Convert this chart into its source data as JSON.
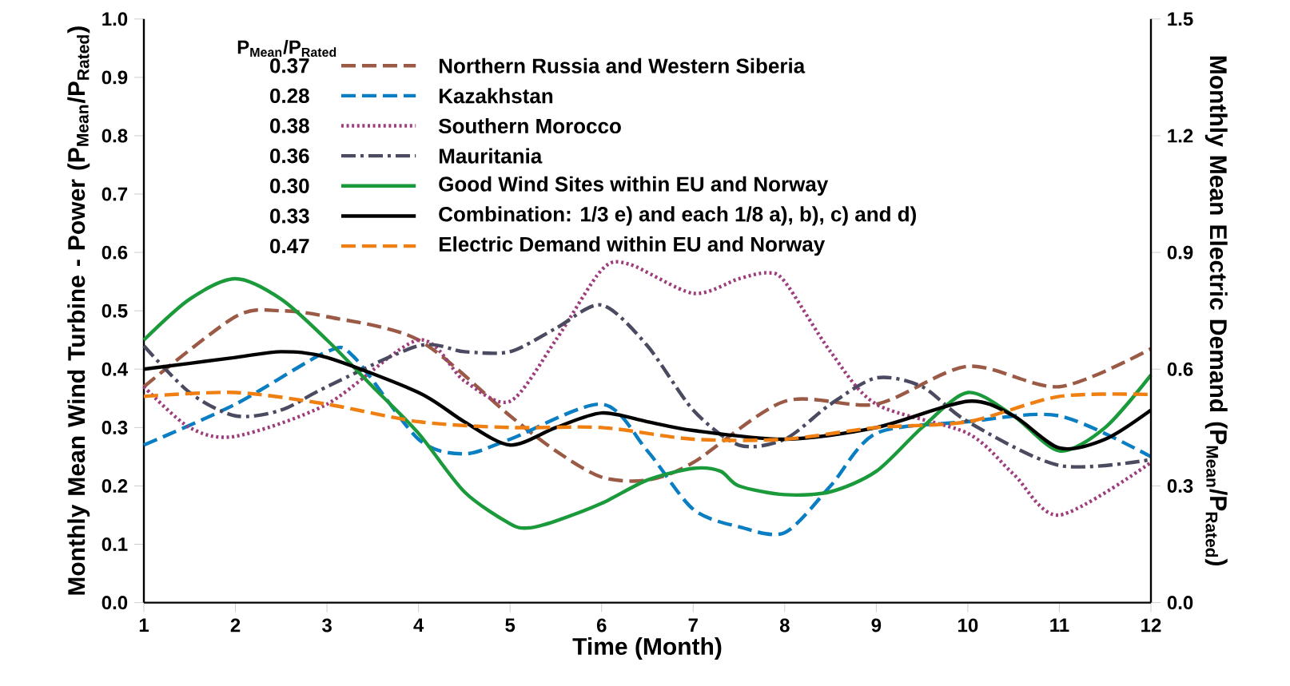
{
  "chart_data": {
    "type": "line",
    "xlabel": "Time (Month)",
    "ylabel": "Monthly Mean Wind Turbine - Power (P$_{Mean}$/P$_{Rated}$)",
    "y2label": "Monthly Mean Electric Demand (P$_{Mean}$/P$_{Rated}$)",
    "legend_title": "P$_{Mean}$/P$_{Rated}$",
    "annotations": [
      "0.37",
      "0.28",
      "0.38",
      "0.36",
      "0.30",
      "0.33",
      "0.47"
    ],
    "xlim": [
      1,
      12
    ],
    "xticks": [
      1,
      2,
      3,
      4,
      5,
      6,
      7,
      8,
      9,
      10,
      11,
      12
    ],
    "ylim": [
      0,
      1
    ],
    "yticks": [
      {
        "value": 0,
        "label": "0.0"
      },
      {
        "value": 0.1,
        "label": "0.1"
      },
      {
        "value": 0.2,
        "label": "0.2"
      },
      {
        "value": 0.3,
        "label": "0.3"
      },
      {
        "value": 0.4,
        "label": "0.4"
      },
      {
        "value": 0.5,
        "label": "0.5"
      },
      {
        "value": 0.6,
        "label": "0.6"
      },
      {
        "value": 0.7,
        "label": "0.7"
      },
      {
        "value": 0.8,
        "label": "0.8"
      },
      {
        "value": 0.9,
        "label": "0.9"
      },
      {
        "value": 1,
        "label": "1.0"
      }
    ],
    "y2lim": [
      0,
      1.5
    ],
    "y2ticks": [
      {
        "value": 0,
        "label": "0.0"
      },
      {
        "value": 0.3,
        "label": "0.3"
      },
      {
        "value": 0.6,
        "label": "0.6"
      },
      {
        "value": 0.9,
        "label": "0.9"
      },
      {
        "value": 1.2,
        "label": "1.2"
      },
      {
        "value": 1.5,
        "label": "1.5"
      }
    ],
    "legend": "top left",
    "marker": "none",
    "series": [
      {
        "name": "Northern Russia and Western Siberia",
        "color": "#9b5a45",
        "line_style": "dashed",
        "x": [
          1,
          2,
          2.5,
          3,
          4,
          5,
          5.5,
          6,
          6.5,
          7,
          8,
          9,
          10,
          11,
          12
        ],
        "values": [
          0.37,
          0.49,
          0.5,
          0.49,
          0.45,
          0.32,
          0.26,
          0.215,
          0.21,
          0.24,
          0.345,
          0.34,
          0.405,
          0.37,
          0.435
        ]
      },
      {
        "name": "Kazakhstan",
        "color": "#0a7ec2",
        "line_style": "dashed",
        "x": [
          1,
          2,
          3,
          3.3,
          4,
          4.5,
          5,
          6,
          6.5,
          7,
          7.5,
          8,
          8.5,
          9,
          10,
          11,
          12
        ],
        "values": [
          0.27,
          0.34,
          0.43,
          0.42,
          0.28,
          0.255,
          0.28,
          0.34,
          0.26,
          0.16,
          0.13,
          0.12,
          0.2,
          0.29,
          0.31,
          0.32,
          0.25
        ]
      },
      {
        "name": "Southern Morocco",
        "color": "#9e3d7d",
        "line_style": "dotted",
        "x": [
          1,
          1.5,
          2,
          3,
          4,
          4.5,
          5,
          5.5,
          6,
          6.3,
          7,
          7.5,
          7.8,
          8,
          8.5,
          9,
          10,
          10.5,
          11,
          12
        ],
        "values": [
          0.37,
          0.3,
          0.285,
          0.34,
          0.45,
          0.38,
          0.345,
          0.45,
          0.57,
          0.58,
          0.53,
          0.555,
          0.565,
          0.55,
          0.43,
          0.34,
          0.29,
          0.22,
          0.15,
          0.24
        ]
      },
      {
        "name": "Mauritania",
        "color": "#4a4a60",
        "line_style": "dashdot",
        "x": [
          1,
          1.5,
          2,
          2.5,
          3,
          4,
          4.5,
          5,
          5.5,
          6,
          6.5,
          7,
          7.5,
          8,
          8.5,
          9,
          9.5,
          10,
          11,
          12
        ],
        "values": [
          0.44,
          0.36,
          0.32,
          0.33,
          0.37,
          0.44,
          0.43,
          0.43,
          0.47,
          0.51,
          0.44,
          0.33,
          0.27,
          0.28,
          0.34,
          0.385,
          0.37,
          0.31,
          0.235,
          0.245
        ]
      },
      {
        "name": "Good Wind Sites within EU and Norway",
        "color": "#1a9a3a",
        "line_style": "solid",
        "x": [
          1,
          1.5,
          2,
          2.5,
          3,
          3.5,
          4,
          4.5,
          5,
          5.2,
          5.5,
          6,
          6.5,
          7,
          7.3,
          7.5,
          8,
          8.5,
          9,
          9.5,
          10,
          10.5,
          11,
          11.5,
          12
        ],
        "values": [
          0.45,
          0.52,
          0.555,
          0.52,
          0.45,
          0.37,
          0.29,
          0.19,
          0.135,
          0.128,
          0.14,
          0.17,
          0.21,
          0.23,
          0.225,
          0.2,
          0.185,
          0.19,
          0.225,
          0.3,
          0.36,
          0.32,
          0.26,
          0.3,
          0.39
        ]
      },
      {
        "name": "Combination: 1/3 e) and each 1/8 a), b), c) and d)",
        "color": "#000000",
        "line_style": "solid",
        "x": [
          1,
          2,
          2.5,
          3,
          4,
          4.5,
          5,
          5.5,
          6,
          6.5,
          7,
          8,
          9,
          10,
          10.5,
          11,
          11.5,
          12
        ],
        "values": [
          0.4,
          0.42,
          0.43,
          0.42,
          0.36,
          0.31,
          0.27,
          0.3,
          0.325,
          0.31,
          0.295,
          0.28,
          0.3,
          0.345,
          0.32,
          0.265,
          0.28,
          0.33
        ]
      },
      {
        "name": "Electric Demand within EU and Norway",
        "color": "#f07f12",
        "line_style": "dashed",
        "axis": "y2",
        "x": [
          1,
          2,
          3,
          4,
          5,
          6,
          7,
          8,
          9,
          10,
          11,
          12
        ],
        "values": [
          0.53,
          0.54,
          0.51,
          0.465,
          0.45,
          0.45,
          0.42,
          0.42,
          0.45,
          0.465,
          0.53,
          0.535
        ]
      }
    ]
  }
}
